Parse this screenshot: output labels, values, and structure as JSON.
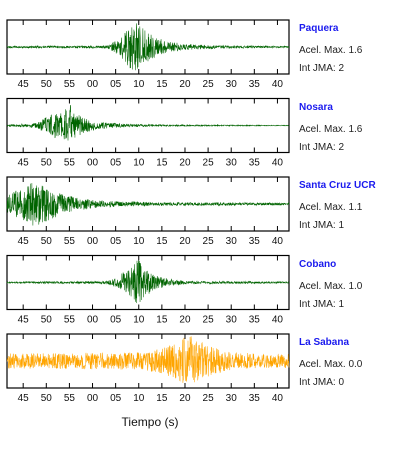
{
  "chart_data": {
    "type": "line",
    "xlabel": "Tiempo (s)",
    "x_ticks": [
      "45",
      "50",
      "55",
      "00",
      "05",
      "10",
      "15",
      "20",
      "25",
      "30",
      "35",
      "40"
    ],
    "xlim_seconds_from_first_tick": [
      -3.5,
      57.5
    ],
    "panels": [
      {
        "station": "Paquera",
        "max_accel_label": "Acel. Max.",
        "max_accel_value": "1.6",
        "jma_label": "Int JMA:",
        "jma_value": "2",
        "trace_color": "#006400",
        "envelope": [
          [
            -3.5,
            0.04
          ],
          [
            18,
            0.05
          ],
          [
            21,
            0.35
          ],
          [
            23,
            0.85
          ],
          [
            24.5,
            1.0
          ],
          [
            26,
            0.75
          ],
          [
            28,
            0.45
          ],
          [
            31,
            0.25
          ],
          [
            35,
            0.12
          ],
          [
            42,
            0.06
          ],
          [
            57.5,
            0.03
          ]
        ]
      },
      {
        "station": "Nosara",
        "max_accel_label": "Acel. Max.",
        "max_accel_value": "1.6",
        "jma_label": "Int JMA:",
        "jma_value": "2",
        "trace_color": "#006400",
        "envelope": [
          [
            -3.5,
            0.03
          ],
          [
            3,
            0.1
          ],
          [
            5,
            0.35
          ],
          [
            7,
            0.5
          ],
          [
            9,
            0.6
          ],
          [
            10,
            1.0
          ],
          [
            11,
            0.55
          ],
          [
            13,
            0.3
          ],
          [
            16,
            0.15
          ],
          [
            22,
            0.06
          ],
          [
            32,
            0.03
          ],
          [
            57.5,
            0.015
          ]
        ]
      },
      {
        "station": "Santa Cruz UCR",
        "max_accel_label": "Acel. Max.",
        "max_accel_value": "1.1",
        "jma_label": "Int JMA:",
        "jma_value": "1",
        "trace_color": "#006400",
        "envelope": [
          [
            -3.5,
            0.35
          ],
          [
            0,
            0.7
          ],
          [
            2,
            0.85
          ],
          [
            3.5,
            1.0
          ],
          [
            5,
            0.7
          ],
          [
            8,
            0.45
          ],
          [
            12,
            0.25
          ],
          [
            18,
            0.12
          ],
          [
            28,
            0.07
          ],
          [
            57.5,
            0.05
          ]
        ]
      },
      {
        "station": "Cobano",
        "max_accel_label": "Acel. Max.",
        "max_accel_value": "1.0",
        "jma_label": "Int JMA:",
        "jma_value": "1",
        "trace_color": "#006400",
        "envelope": [
          [
            -3.5,
            0.03
          ],
          [
            18,
            0.05
          ],
          [
            20,
            0.2
          ],
          [
            22,
            0.5
          ],
          [
            24,
            0.75
          ],
          [
            25,
            1.0
          ],
          [
            26,
            0.6
          ],
          [
            28,
            0.35
          ],
          [
            31,
            0.15
          ],
          [
            36,
            0.06
          ],
          [
            57.5,
            0.03
          ]
        ]
      },
      {
        "station": "La Sabana",
        "max_accel_label": "Acel. Max.",
        "max_accel_value": "0.0",
        "jma_label": "Int JMA:",
        "jma_value": "0",
        "trace_color": "#ffa500",
        "envelope": [
          [
            -3.5,
            0.3
          ],
          [
            25,
            0.35
          ],
          [
            30,
            0.5
          ],
          [
            33,
            0.75
          ],
          [
            35,
            0.95
          ],
          [
            36.5,
            1.0
          ],
          [
            38,
            0.8
          ],
          [
            41,
            0.55
          ],
          [
            44,
            0.4
          ],
          [
            50,
            0.3
          ],
          [
            57.5,
            0.28
          ]
        ]
      }
    ]
  }
}
